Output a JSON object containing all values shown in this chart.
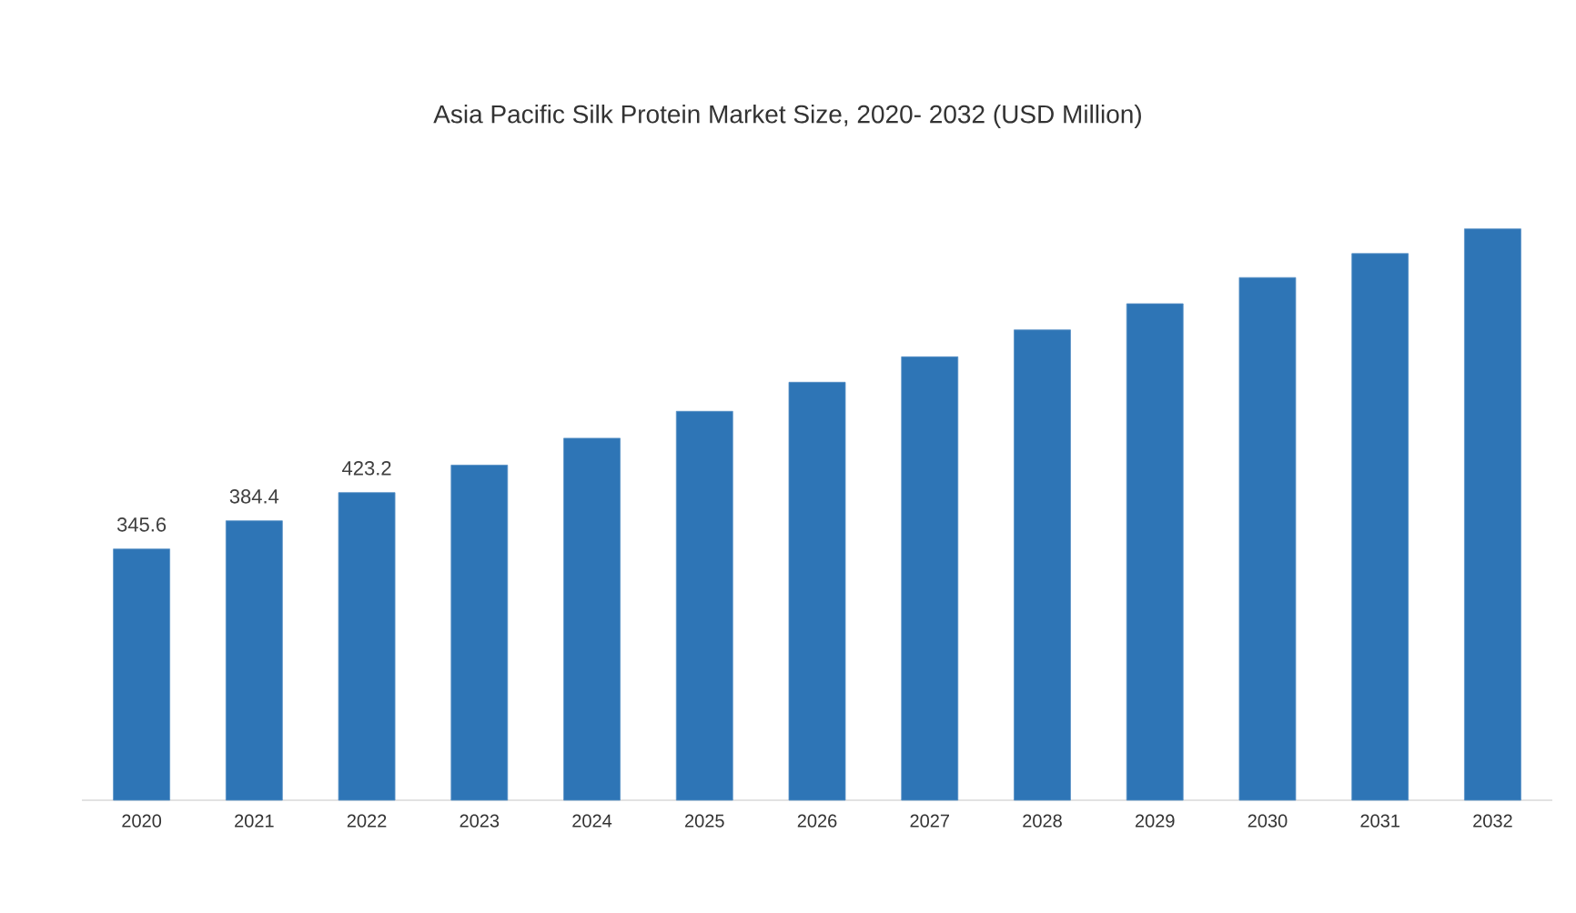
{
  "chart_data": {
    "type": "bar",
    "title": "Asia Pacific Silk Protein Market Size, 2020- 2032 (USD Million)",
    "categories": [
      "2020",
      "2021",
      "2022",
      "2023",
      "2024",
      "2025",
      "2026",
      "2027",
      "2028",
      "2029",
      "2030",
      "2031",
      "2032"
    ],
    "values": [
      345.6,
      384.4,
      423.2,
      461,
      498,
      535,
      575,
      610,
      647,
      683,
      719,
      752,
      786
    ],
    "value_labels": [
      "345.6",
      "384.4",
      "423.2",
      null,
      null,
      null,
      null,
      null,
      null,
      null,
      null,
      null,
      null
    ],
    "color": "#2e75b6",
    "tick_labels": "x"
  }
}
